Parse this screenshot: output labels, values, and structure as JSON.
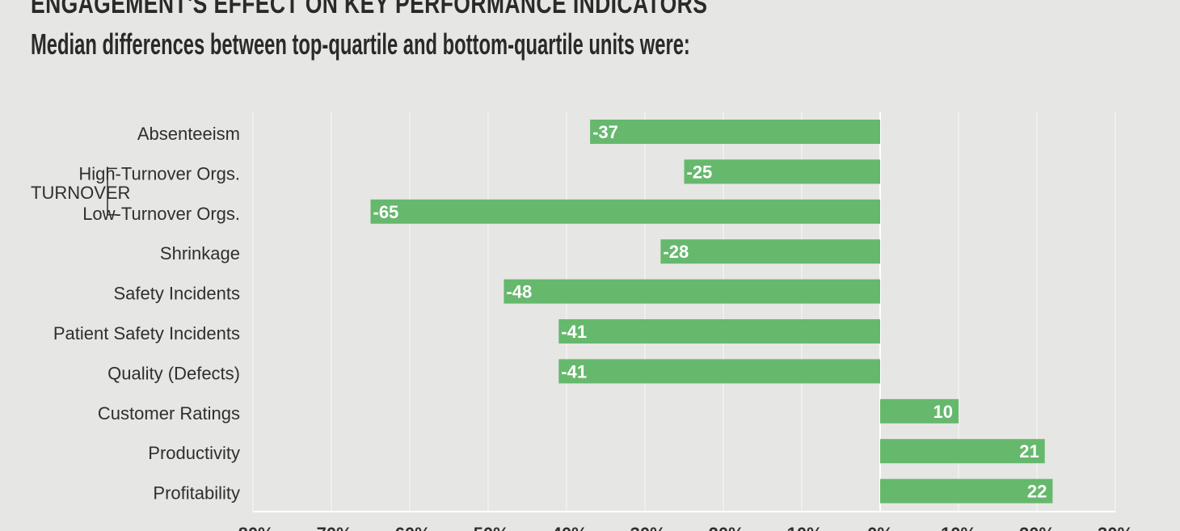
{
  "header": {
    "title": "ENGAGEMENT'S EFFECT ON KEY PERFORMANCE INDICATORS",
    "subtitle": "Median differences between top-quartile and bottom-quartile units were:"
  },
  "colors": {
    "bar": "#66b86d",
    "grid": "#f5f5f3",
    "axis": "#ffffff",
    "background": "#e6e6e4",
    "text": "#2f2f2f"
  },
  "chart_data": {
    "type": "bar",
    "orientation": "horizontal",
    "categories": [
      "Absenteeism",
      "High-Turnover Orgs.",
      "Low-Turnover Orgs.",
      "Shrinkage",
      "Safety Incidents",
      "Patient Safety Incidents",
      "Quality (Defects)",
      "Customer Ratings",
      "Productivity",
      "Profitability"
    ],
    "values": [
      -37,
      -25,
      -65,
      -28,
      -48,
      -41,
      -41,
      10,
      21,
      22
    ],
    "value_labels": [
      "-37",
      "-25",
      "-65",
      "-28",
      "-48",
      "-41",
      "-41",
      "10",
      "21",
      "22"
    ],
    "group_label": "TURNOVER",
    "group_members": [
      "High-Turnover Orgs.",
      "Low-Turnover Orgs."
    ],
    "xlim": [
      -80,
      30
    ],
    "grid": true
  }
}
